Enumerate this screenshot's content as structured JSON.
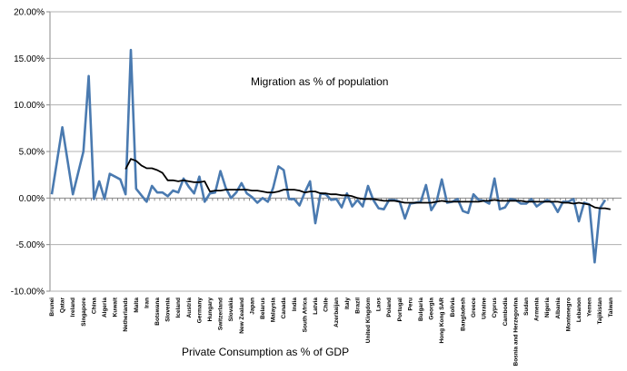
{
  "chart_data": {
    "type": "line",
    "title": "",
    "annotation": "Migration as % of population",
    "xlabel": "Private Consumption as % of GDP",
    "ylabel": "",
    "ylim": [
      -10,
      20
    ],
    "y_ticks": [
      "20.00%",
      "15.00%",
      "10.00%",
      "5.00%",
      "0.00%",
      "-5.00%",
      "-10.00%"
    ],
    "y_tick_values": [
      20,
      15,
      10,
      5,
      0,
      -5,
      -10
    ],
    "grid": true,
    "legend": "none",
    "x_tick_labels_every": 2,
    "x_tick_labels": [
      "Brunei",
      "Qatar",
      "Ireland",
      "Singapore",
      "China",
      "Algeria",
      "Kuwait",
      "Netherlands",
      "Malta",
      "Iran",
      "Botswana",
      "Slovenia",
      "Iceland",
      "Austria",
      "Germany",
      "Hungary",
      "Switzerland",
      "Slovakia",
      "New Zealand",
      "Japan",
      "Belarus",
      "Malaysia",
      "Canada",
      "India",
      "South Africa",
      "Latvia",
      "Chile",
      "Azerbaijan",
      "Italy",
      "Brazil",
      "United Kingdom",
      "Laos",
      "Poland",
      "Portugal",
      "Peru",
      "Bulgaria",
      "Georgia",
      "Hong Kong SAR",
      "Bolivia",
      "Bangladesh",
      "Greece",
      "Ukraine",
      "Cyprus",
      "Cambodia",
      "Bosnia and Herzegovina",
      "Sudan",
      "Armenia",
      "Nigeria",
      "Albania",
      "Montenegro",
      "Lebanon",
      "Yemen",
      "Tajikistan",
      "Taiwan"
    ],
    "series": [
      {
        "color": "#4a7ab0",
        "values": [
          0.4,
          4.0,
          7.6,
          4.0,
          0.4,
          2.7,
          5.0,
          13.1,
          -0.1,
          1.8,
          -0.1,
          2.6,
          2.3,
          2.0,
          0.4,
          15.9,
          1.0,
          0.3,
          -0.4,
          1.3,
          0.6,
          0.6,
          0.2,
          0.8,
          0.6,
          2.1,
          1.2,
          0.5,
          2.3,
          -0.4,
          0.5,
          0.6,
          2.9,
          1.1,
          0.0,
          0.6,
          1.6,
          0.5,
          0.1,
          -0.5,
          0.0,
          -0.4,
          1.1,
          3.4,
          3.0,
          -0.1,
          -0.1,
          -0.8,
          0.6,
          1.8,
          -2.7,
          0.5,
          0.4,
          -0.2,
          -0.1,
          -1.0,
          0.5,
          -0.9,
          -0.2,
          -0.9,
          1.3,
          -0.2,
          -1.1,
          -1.2,
          -0.2,
          -0.2,
          -0.4,
          -2.2,
          -0.6,
          -0.5,
          -0.4,
          1.4,
          -1.3,
          -0.4,
          2.0,
          -0.5,
          -0.4,
          -0.1,
          -1.4,
          -1.6,
          0.4,
          -0.2,
          -0.3,
          -0.6,
          2.1,
          -1.2,
          -1.0,
          -0.1,
          -0.2,
          -0.6,
          -0.6,
          -0.1,
          -0.9,
          -0.5,
          -0.2,
          -0.5,
          -1.5,
          -0.4,
          -0.4,
          -0.1,
          -2.5,
          -0.5,
          -0.7,
          -6.9,
          -1.1,
          -0.2,
          null
        ]
      },
      {
        "color": "#000000",
        "values": [
          null,
          null,
          null,
          null,
          null,
          null,
          null,
          null,
          null,
          null,
          null,
          null,
          null,
          null,
          3.1,
          4.2,
          4.0,
          3.5,
          3.2,
          3.2,
          3.0,
          2.7,
          1.9,
          1.9,
          1.8,
          1.9,
          1.8,
          1.7,
          1.7,
          1.8,
          0.7,
          0.8,
          0.8,
          0.9,
          0.9,
          0.9,
          0.9,
          0.9,
          0.8,
          0.8,
          0.7,
          0.6,
          0.6,
          0.7,
          0.9,
          0.9,
          0.9,
          0.8,
          0.6,
          0.7,
          0.7,
          0.5,
          0.5,
          0.4,
          0.4,
          0.3,
          0.3,
          0.2,
          0.0,
          -0.1,
          -0.1,
          -0.1,
          -0.2,
          -0.3,
          -0.3,
          -0.3,
          -0.4,
          -0.5,
          -0.5,
          -0.5,
          -0.5,
          -0.5,
          -0.5,
          -0.4,
          -0.3,
          -0.4,
          -0.4,
          -0.4,
          -0.4,
          -0.4,
          -0.4,
          -0.4,
          -0.3,
          -0.3,
          -0.2,
          -0.3,
          -0.3,
          -0.3,
          -0.3,
          -0.3,
          -0.4,
          -0.4,
          -0.4,
          -0.4,
          -0.4,
          -0.4,
          -0.4,
          -0.5,
          -0.5,
          -0.6,
          -0.5,
          -0.6,
          -0.7,
          -1.0,
          -1.1,
          -1.1,
          -1.2
        ]
      }
    ]
  }
}
